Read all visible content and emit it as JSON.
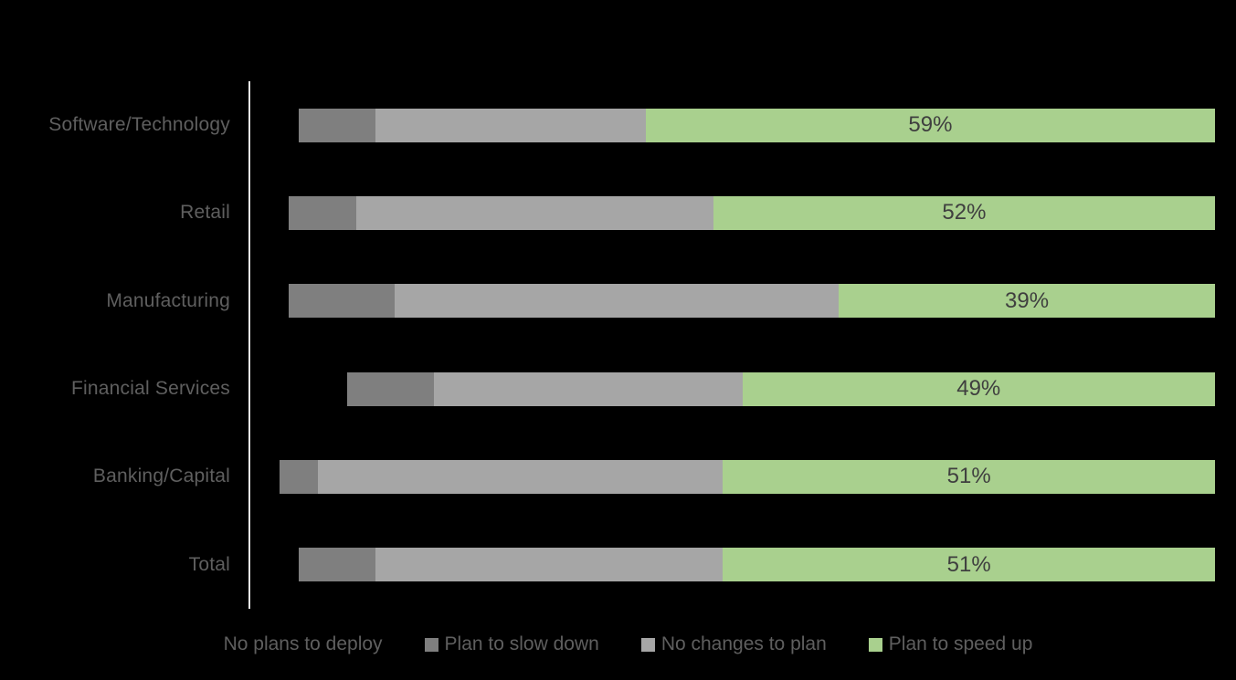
{
  "chart_data": {
    "type": "bar",
    "orientation": "horizontal",
    "stacked": true,
    "stack_unit": "percent",
    "title": "",
    "xlabel": "",
    "ylabel": "",
    "xlim": [
      0,
      100
    ],
    "grid": false,
    "legend_position": "bottom",
    "background_color": "#000000",
    "axis_line_color": "#e6e6e6",
    "category_label_color": "#5f5f5f",
    "data_label_color": "#3f3f3f",
    "categories": [
      "Software/Technology",
      "Retail",
      "Manufacturing",
      "Financial Services",
      "Banking/Capital",
      "Total"
    ],
    "series": [
      {
        "name": "No plans to deploy",
        "color": "#000000",
        "values": [
          5,
          4,
          4,
          10,
          3,
          5
        ]
      },
      {
        "name": "Plan to slow down",
        "color": "#7f7f7f",
        "values": [
          8,
          7,
          11,
          9,
          4,
          8
        ]
      },
      {
        "name": "No changes to plan",
        "color": "#a6a6a6",
        "values": [
          28,
          37,
          46,
          32,
          42,
          36
        ]
      },
      {
        "name": "Plan to speed up",
        "color": "#a9d08e",
        "values": [
          59,
          52,
          39,
          49,
          51,
          51
        ]
      }
    ],
    "data_labels": {
      "series": "Plan to speed up",
      "labels": [
        "59%",
        "52%",
        "39%",
        "49%",
        "51%",
        "51%"
      ]
    }
  },
  "legend": {
    "items": [
      {
        "label": "No plans to deploy",
        "swatch_color": "#000000"
      },
      {
        "label": "Plan to slow down",
        "swatch_color": "#7f7f7f"
      },
      {
        "label": "No changes to plan",
        "swatch_color": "#a6a6a6"
      },
      {
        "label": "Plan to speed up",
        "swatch_color": "#a9d08e"
      }
    ]
  }
}
